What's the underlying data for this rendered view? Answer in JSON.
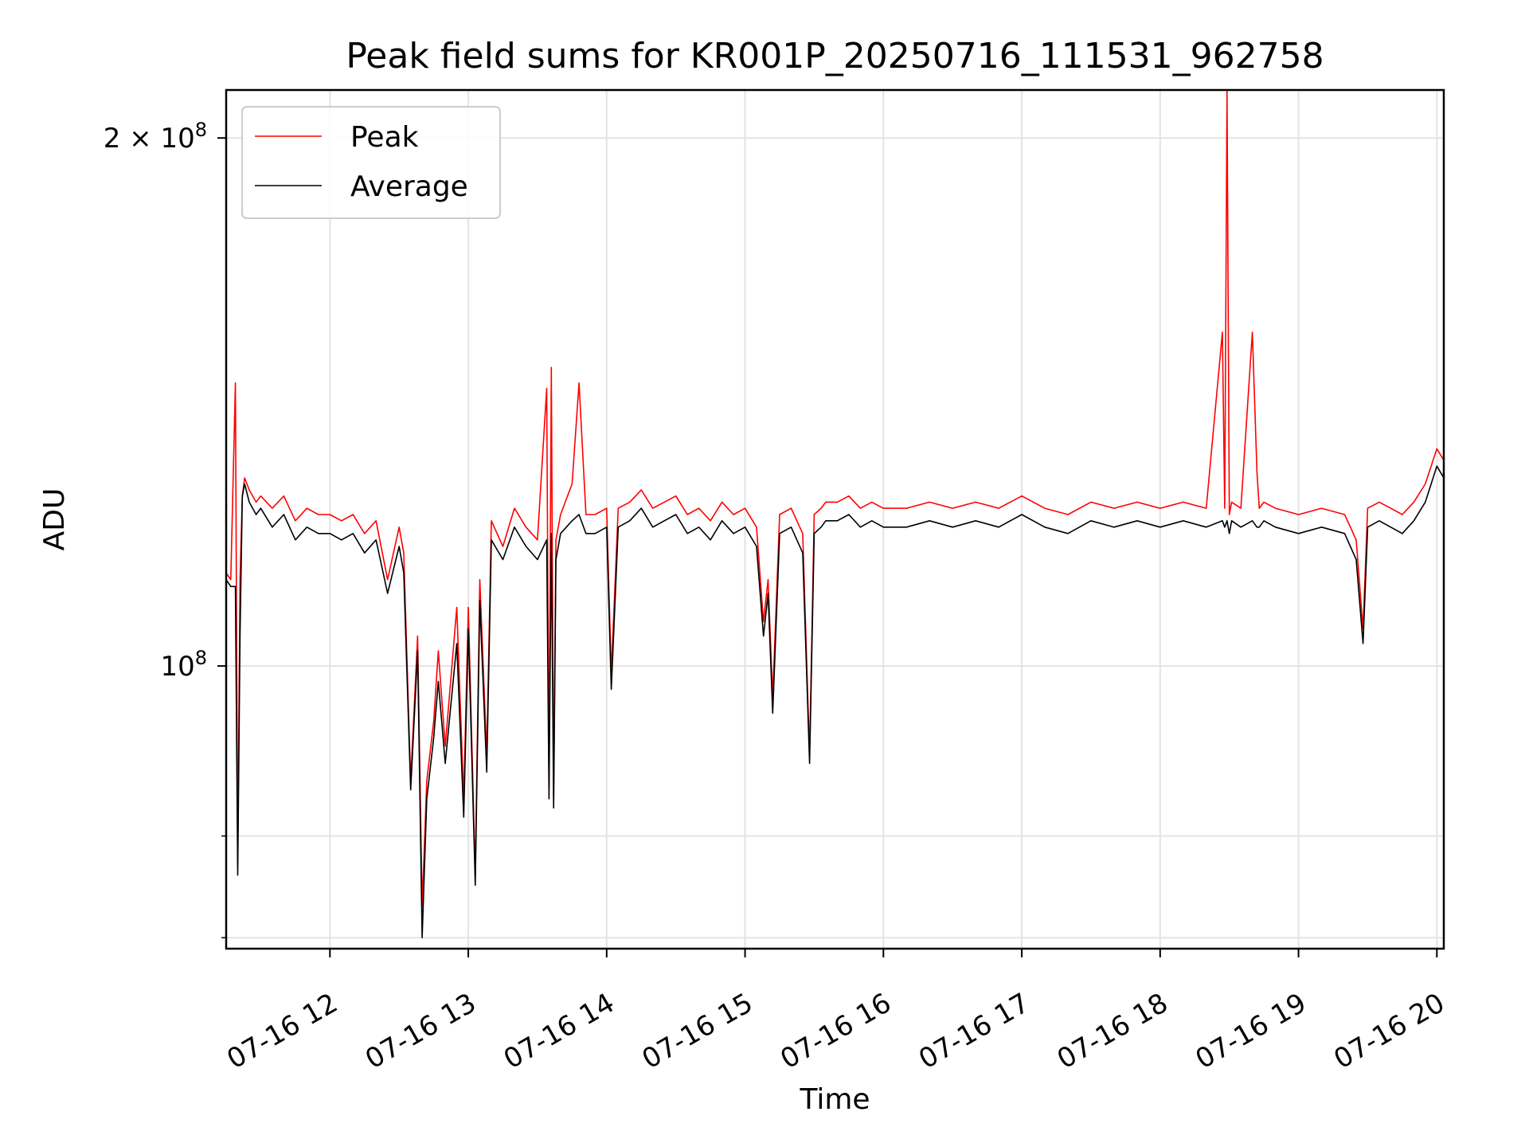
{
  "chart_data": {
    "type": "line",
    "title": "Peak field sums for KR001P_20250716_111531_962758",
    "xlabel": "Time",
    "ylabel": "ADU",
    "x_axis": {
      "kind": "time",
      "range": [
        "2025-07-16 11:15",
        "2025-07-16 20:03"
      ],
      "ticks": [
        "2025-07-16 12:00",
        "2025-07-16 13:00",
        "2025-07-16 14:00",
        "2025-07-16 15:00",
        "2025-07-16 16:00",
        "2025-07-16 17:00",
        "2025-07-16 18:00",
        "2025-07-16 19:00",
        "2025-07-16 20:00"
      ],
      "tick_labels": [
        "07-16 12",
        "07-16 13",
        "07-16 14",
        "07-16 15",
        "07-16 16",
        "07-16 17",
        "07-16 18",
        "07-16 19",
        "07-16 20"
      ]
    },
    "y_axis": {
      "scale": "log",
      "range": [
        69000000,
        213000000
      ],
      "major_ticks": [
        100000000,
        200000000
      ],
      "major_tick_label_base": [
        "10",
        "2 × 10"
      ],
      "major_tick_label_exponent": [
        "8",
        "8"
      ],
      "minor_ticks": [
        70000000,
        80000000
      ]
    },
    "grid": true,
    "legend": {
      "placement": "top-left",
      "entries": [
        "Peak",
        "Average"
      ]
    },
    "series": [
      {
        "name": "Peak",
        "color": "#ff0000",
        "x": [
          "11:15",
          "11:17",
          "11:19",
          "11:20",
          "11:21",
          "11:22",
          "11:23",
          "11:25",
          "11:28",
          "11:30",
          "11:35",
          "11:40",
          "11:45",
          "11:50",
          "11:55",
          "12:00",
          "12:05",
          "12:10",
          "12:15",
          "12:20",
          "12:25",
          "12:30",
          "12:32",
          "12:35",
          "12:38",
          "12:40",
          "12:42",
          "12:45",
          "12:47",
          "12:50",
          "12:55",
          "12:58",
          "13:00",
          "13:03",
          "13:05",
          "13:08",
          "13:10",
          "13:15",
          "13:20",
          "13:25",
          "13:30",
          "13:34",
          "13:35",
          "13:36",
          "13:37",
          "13:38",
          "13:40",
          "13:45",
          "13:48",
          "13:51",
          "13:55",
          "14:00",
          "14:02",
          "14:05",
          "14:10",
          "14:15",
          "14:20",
          "14:25",
          "14:30",
          "14:35",
          "14:40",
          "14:45",
          "14:50",
          "14:55",
          "15:00",
          "15:05",
          "15:08",
          "15:10",
          "15:12",
          "15:15",
          "15:20",
          "15:25",
          "15:28",
          "15:30",
          "15:33",
          "15:35",
          "15:40",
          "15:45",
          "15:50",
          "15:55",
          "16:00",
          "16:10",
          "16:20",
          "16:30",
          "16:40",
          "16:50",
          "17:00",
          "17:10",
          "17:20",
          "17:30",
          "17:40",
          "17:50",
          "18:00",
          "18:10",
          "18:20",
          "18:27",
          "18:28",
          "18:29",
          "18:30",
          "18:31",
          "18:35",
          "18:40",
          "18:42",
          "18:43",
          "18:45",
          "18:50",
          "19:00",
          "19:10",
          "19:20",
          "19:25",
          "19:28",
          "19:30",
          "19:35",
          "19:40",
          "19:45",
          "19:50",
          "19:55",
          "20:00",
          "20:03"
        ],
        "y": [
          113000000,
          112000000,
          145000000,
          77000000,
          112000000,
          125000000,
          128000000,
          126000000,
          124000000,
          125000000,
          123000000,
          125000000,
          121000000,
          123000000,
          122000000,
          122000000,
          121000000,
          122000000,
          119000000,
          121000000,
          112000000,
          120000000,
          116000000,
          86000000,
          104000000,
          73000000,
          86000000,
          93000000,
          102000000,
          90000000,
          108000000,
          84000000,
          108000000,
          76000000,
          112000000,
          89000000,
          121000000,
          117000000,
          123000000,
          120000000,
          118000000,
          144000000,
          85000000,
          148000000,
          84000000,
          118000000,
          122000000,
          127000000,
          145000000,
          122000000,
          122000000,
          123000000,
          99000000,
          123000000,
          124000000,
          126000000,
          123000000,
          124000000,
          125000000,
          122000000,
          123000000,
          121000000,
          124000000,
          122000000,
          123000000,
          120000000,
          106000000,
          112000000,
          96000000,
          122000000,
          123000000,
          119000000,
          89000000,
          122000000,
          123000000,
          124000000,
          124000000,
          125000000,
          123000000,
          124000000,
          123000000,
          123000000,
          124000000,
          123000000,
          124000000,
          123000000,
          125000000,
          123000000,
          122000000,
          124000000,
          123000000,
          124000000,
          123000000,
          124000000,
          123000000,
          155000000,
          123000000,
          213000000,
          122000000,
          124000000,
          123000000,
          155000000,
          129000000,
          123000000,
          124000000,
          123000000,
          122000000,
          123000000,
          122000000,
          118000000,
          105000000,
          123000000,
          124000000,
          123000000,
          122000000,
          124000000,
          127000000,
          133000000,
          131000000
        ]
      },
      {
        "name": "Average",
        "color": "#000000",
        "x": [
          "11:15",
          "11:17",
          "11:19",
          "11:20",
          "11:21",
          "11:22",
          "11:23",
          "11:25",
          "11:28",
          "11:30",
          "11:35",
          "11:40",
          "11:45",
          "11:50",
          "11:55",
          "12:00",
          "12:05",
          "12:10",
          "12:15",
          "12:20",
          "12:25",
          "12:30",
          "12:32",
          "12:35",
          "12:38",
          "12:40",
          "12:42",
          "12:45",
          "12:47",
          "12:50",
          "12:55",
          "12:58",
          "13:00",
          "13:03",
          "13:05",
          "13:08",
          "13:10",
          "13:15",
          "13:20",
          "13:25",
          "13:30",
          "13:34",
          "13:35",
          "13:36",
          "13:37",
          "13:38",
          "13:40",
          "13:45",
          "13:48",
          "13:51",
          "13:55",
          "14:00",
          "14:02",
          "14:05",
          "14:10",
          "14:15",
          "14:20",
          "14:25",
          "14:30",
          "14:35",
          "14:40",
          "14:45",
          "14:50",
          "14:55",
          "15:00",
          "15:05",
          "15:08",
          "15:10",
          "15:12",
          "15:15",
          "15:20",
          "15:25",
          "15:28",
          "15:30",
          "15:33",
          "15:35",
          "15:40",
          "15:45",
          "15:50",
          "15:55",
          "16:00",
          "16:10",
          "16:20",
          "16:30",
          "16:40",
          "16:50",
          "17:00",
          "17:10",
          "17:20",
          "17:30",
          "17:40",
          "17:50",
          "18:00",
          "18:10",
          "18:20",
          "18:27",
          "18:28",
          "18:29",
          "18:30",
          "18:31",
          "18:35",
          "18:40",
          "18:42",
          "18:43",
          "18:45",
          "18:50",
          "19:00",
          "19:10",
          "19:20",
          "19:25",
          "19:28",
          "19:30",
          "19:35",
          "19:40",
          "19:45",
          "19:50",
          "19:55",
          "20:00",
          "20:03"
        ],
        "y": [
          112000000,
          111000000,
          111000000,
          76000000,
          104000000,
          125000000,
          127000000,
          124000000,
          122000000,
          123000000,
          120000000,
          122000000,
          118000000,
          120000000,
          119000000,
          119000000,
          118000000,
          119000000,
          116000000,
          118000000,
          110000000,
          117000000,
          113000000,
          85000000,
          102000000,
          70000000,
          84000000,
          91000000,
          98000000,
          88000000,
          103000000,
          82000000,
          105000000,
          75000000,
          109000000,
          87000000,
          118000000,
          115000000,
          120000000,
          117000000,
          115000000,
          118000000,
          84000000,
          119000000,
          83000000,
          115000000,
          119000000,
          121000000,
          122000000,
          119000000,
          119000000,
          120000000,
          97000000,
          120000000,
          121000000,
          123000000,
          120000000,
          121000000,
          122000000,
          119000000,
          120000000,
          118000000,
          121000000,
          119000000,
          120000000,
          117000000,
          104000000,
          110000000,
          94000000,
          119000000,
          120000000,
          116000000,
          88000000,
          119000000,
          120000000,
          121000000,
          121000000,
          122000000,
          120000000,
          121000000,
          120000000,
          120000000,
          121000000,
          120000000,
          121000000,
          120000000,
          122000000,
          120000000,
          119000000,
          121000000,
          120000000,
          121000000,
          120000000,
          121000000,
          120000000,
          121000000,
          120000000,
          121000000,
          119000000,
          121000000,
          120000000,
          121000000,
          120000000,
          120000000,
          121000000,
          120000000,
          119000000,
          120000000,
          119000000,
          115000000,
          103000000,
          120000000,
          121000000,
          120000000,
          119000000,
          121000000,
          124000000,
          130000000,
          128000000
        ]
      }
    ]
  }
}
